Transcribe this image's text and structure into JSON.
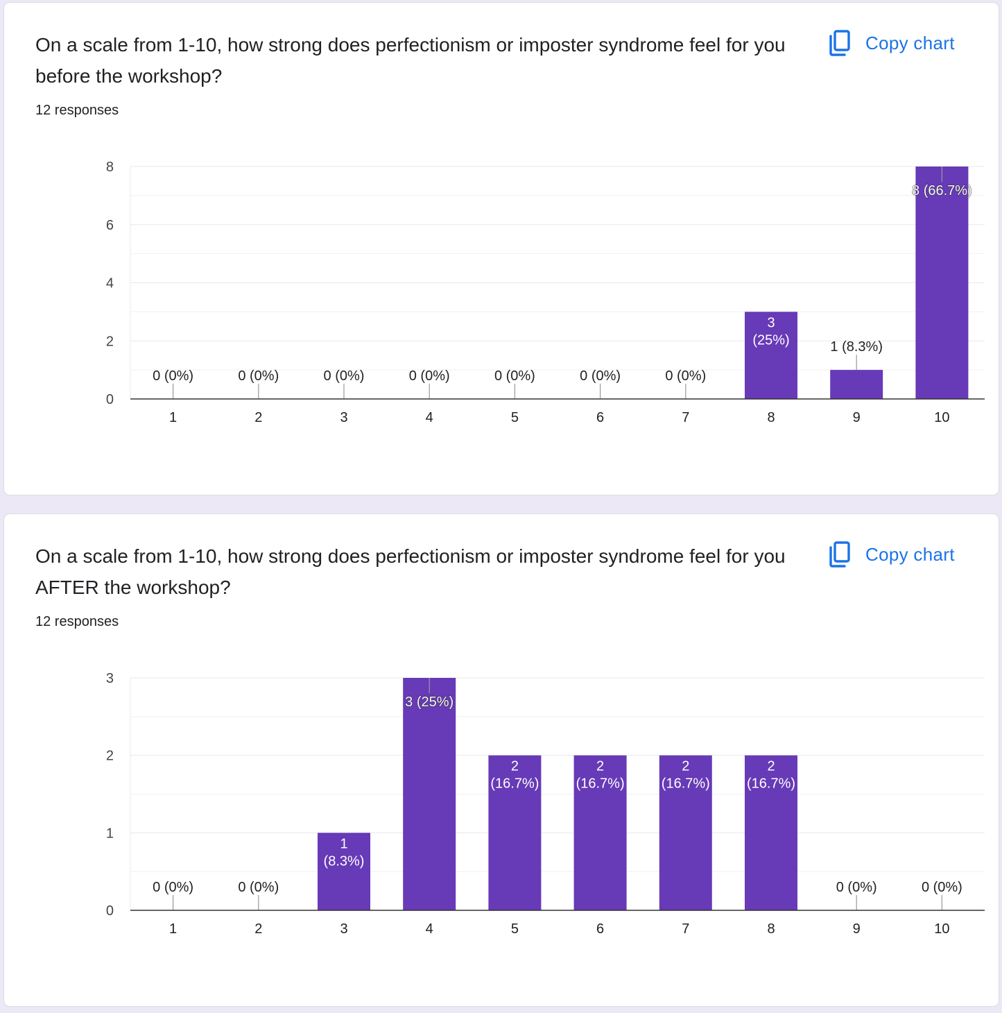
{
  "colors": {
    "bar": "#673ab7",
    "accent": "#1a73e8",
    "text": "#202124",
    "grid": "#e8e8e8",
    "axis": "#333333"
  },
  "cards": [
    {
      "question": "On a scale from 1-10, how strong does perfectionism or imposter syndrome feel for you before the workshop?",
      "responses": "12 responses",
      "copy_label": "Copy chart",
      "copy_icon": "copy-icon",
      "chart_data": {
        "type": "bar",
        "title": "",
        "xlabel": "",
        "ylabel": "",
        "categories": [
          "1",
          "2",
          "3",
          "4",
          "5",
          "6",
          "7",
          "8",
          "9",
          "10"
        ],
        "values": [
          0,
          0,
          0,
          0,
          0,
          0,
          0,
          3,
          1,
          8
        ],
        "labels": [
          "0 (0%)",
          "0 (0%)",
          "0 (0%)",
          "0 (0%)",
          "0 (0%)",
          "0 (0%)",
          "0 (0%)",
          "3 (25%)",
          "1 (8.3%)",
          "8 (66.7%)"
        ],
        "ylim": [
          0,
          8
        ],
        "yticks": [
          0,
          2,
          4,
          6,
          8
        ],
        "grid": true,
        "legend": "none"
      }
    },
    {
      "question": "On a scale from 1-10, how strong does perfectionism or imposter syndrome feel for you AFTER the workshop?",
      "responses": "12 responses",
      "copy_label": "Copy chart",
      "copy_icon": "copy-icon",
      "chart_data": {
        "type": "bar",
        "title": "",
        "xlabel": "",
        "ylabel": "",
        "categories": [
          "1",
          "2",
          "3",
          "4",
          "5",
          "6",
          "7",
          "8",
          "9",
          "10"
        ],
        "values": [
          0,
          0,
          1,
          3,
          2,
          2,
          2,
          2,
          0,
          0
        ],
        "labels": [
          "0 (0%)",
          "0 (0%)",
          "1 (8.3%)",
          "3 (25%)",
          "2 (16.7%)",
          "2 (16.7%)",
          "2 (16.7%)",
          "2 (16.7%)",
          "0 (0%)",
          "0 (0%)"
        ],
        "ylim": [
          0,
          3
        ],
        "yticks": [
          0,
          1,
          2,
          3
        ],
        "grid": true,
        "legend": "none"
      }
    }
  ]
}
